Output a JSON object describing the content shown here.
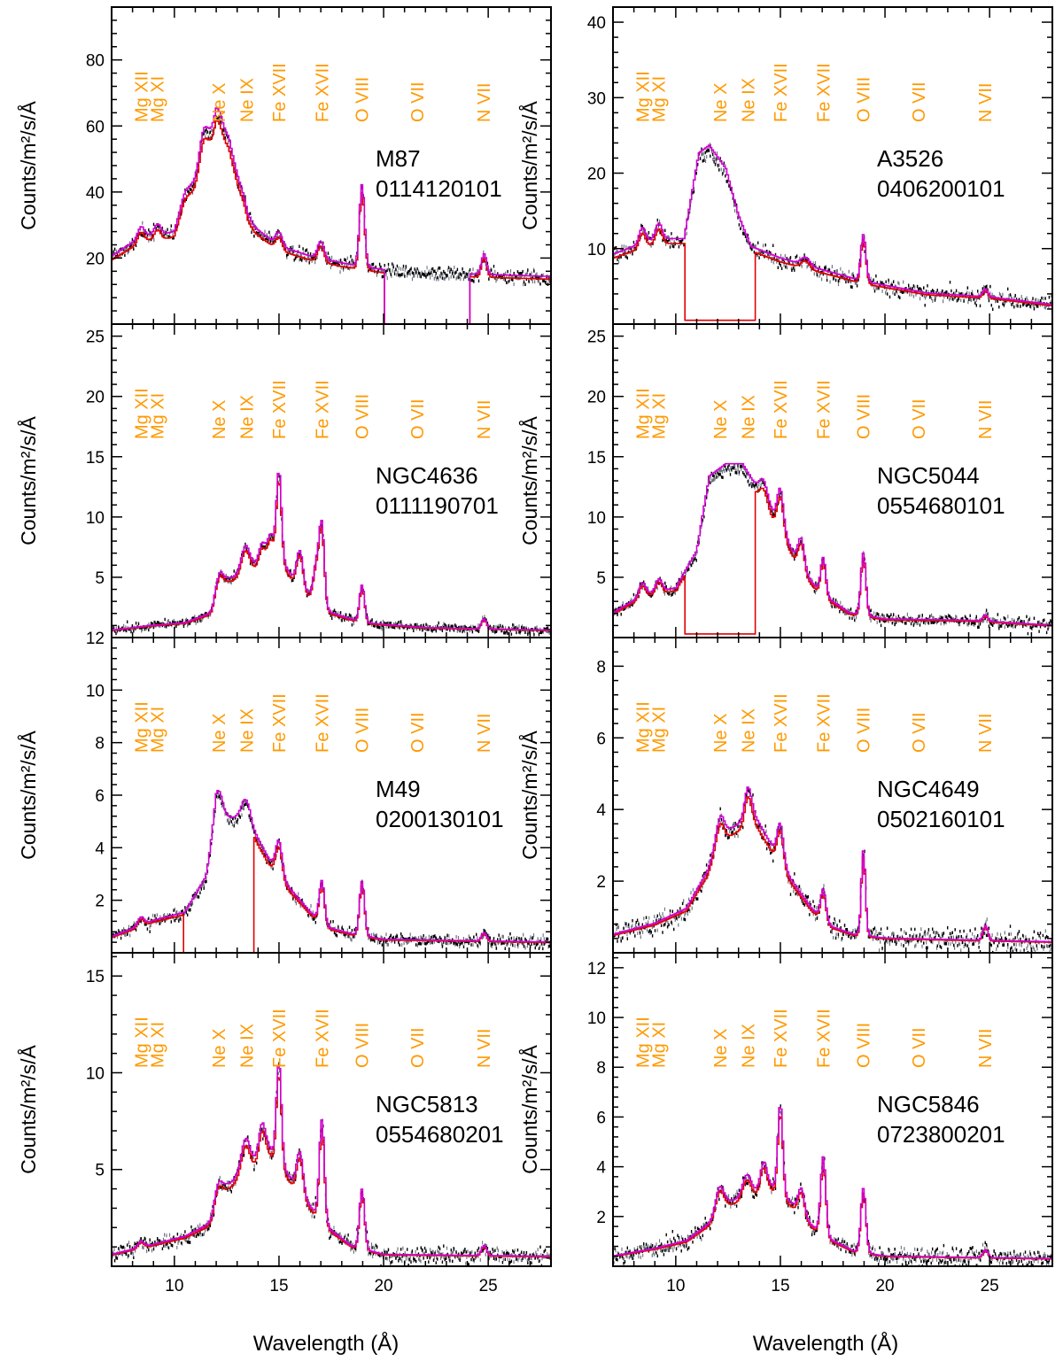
{
  "figure": {
    "xlabel": "Wavelength (Å)",
    "ylabel": "Counts/m²/s/Å",
    "xlim": [
      7,
      28
    ],
    "xticks": [
      10,
      15,
      20,
      25
    ],
    "colors": {
      "data_black": "#000000",
      "data_grey": "#6e7580",
      "model_red": "#e00000",
      "model_magenta": "#d000d0",
      "line_labels": "#ff9900"
    }
  },
  "line_labels": [
    {
      "text": "Mg XII",
      "wavelength": 8.42
    },
    {
      "text": "Mg XI",
      "wavelength": 9.17
    },
    {
      "text": "Ne X",
      "wavelength": 12.13
    },
    {
      "text": "Ne IX",
      "wavelength": 13.45
    },
    {
      "text": "Fe XVII",
      "wavelength": 15.01
    },
    {
      "text": "Fe XVII",
      "wavelength": 17.05
    },
    {
      "text": "O VIII",
      "wavelength": 18.97
    },
    {
      "text": "O VII",
      "wavelength": 21.6
    },
    {
      "text": "N VII",
      "wavelength": 24.78
    }
  ],
  "chart_data": [
    {
      "type": "line",
      "object": "M87",
      "obsid": "0114120101",
      "ylim": [
        0,
        96
      ],
      "yticks": [
        20,
        40,
        60,
        80
      ],
      "continuum": [
        [
          7,
          20
        ],
        [
          8.5,
          26
        ],
        [
          10,
          27
        ],
        [
          11,
          42
        ],
        [
          12,
          60
        ],
        [
          12.6,
          55
        ],
        [
          13.5,
          30
        ],
        [
          15,
          23
        ],
        [
          16.5,
          20
        ],
        [
          18,
          18
        ],
        [
          20,
          16
        ],
        [
          23,
          15
        ],
        [
          28,
          14
        ]
      ],
      "peaks": [
        [
          8.4,
          3,
          0.15
        ],
        [
          9.2,
          3,
          0.15
        ],
        [
          10.5,
          4,
          0.25
        ],
        [
          11.4,
          8,
          0.2
        ],
        [
          12.1,
          4,
          0.18
        ],
        [
          13.4,
          3,
          0.2
        ],
        [
          15.0,
          4,
          0.15
        ],
        [
          17.0,
          5,
          0.15
        ],
        [
          18.97,
          24,
          0.12
        ],
        [
          24.8,
          6,
          0.12
        ]
      ],
      "noise": 1.8,
      "model_gap": [
        20.0,
        24.1
      ],
      "gap_level": 0
    },
    {
      "type": "line",
      "object": "A3526",
      "obsid": "0406200101",
      "ylim": [
        0,
        42
      ],
      "yticks": [
        10,
        20,
        30,
        40
      ],
      "continuum": [
        [
          7,
          9
        ],
        [
          9,
          11
        ],
        [
          10.4,
          11
        ],
        [
          11.1,
          22
        ],
        [
          11.6,
          23
        ],
        [
          12.4,
          20
        ],
        [
          13.0,
          14
        ],
        [
          13.6,
          10
        ],
        [
          15,
          8.5
        ],
        [
          17,
          7
        ],
        [
          19,
          5.5
        ],
        [
          22,
          4
        ],
        [
          25,
          3.5
        ],
        [
          28,
          2.5
        ]
      ],
      "peaks": [
        [
          8.4,
          2,
          0.15
        ],
        [
          9.2,
          2,
          0.15
        ],
        [
          16.2,
          1,
          0.2
        ],
        [
          18.97,
          6,
          0.12
        ],
        [
          24.8,
          1,
          0.12
        ]
      ],
      "noise": 0.9,
      "model_gap": [
        10.4,
        13.8
      ],
      "gap_level": 0.5
    },
    {
      "type": "line",
      "object": "NGC4636",
      "obsid": "0111190701",
      "ylim": [
        0,
        26
      ],
      "yticks": [
        5,
        10,
        15,
        20,
        25
      ],
      "continuum": [
        [
          7,
          0.6
        ],
        [
          9,
          1
        ],
        [
          10.5,
          1.2
        ],
        [
          11.8,
          2
        ],
        [
          12.2,
          4.5
        ],
        [
          13,
          5
        ],
        [
          14,
          6
        ],
        [
          15,
          6.5
        ],
        [
          16,
          4
        ],
        [
          17.5,
          2
        ],
        [
          19,
          1.2
        ],
        [
          22,
          0.8
        ],
        [
          28,
          0.6
        ]
      ],
      "peaks": [
        [
          12.1,
          1,
          0.2
        ],
        [
          13.4,
          2,
          0.2
        ],
        [
          14.2,
          1.5,
          0.15
        ],
        [
          14.6,
          2,
          0.15
        ],
        [
          15.0,
          7,
          0.12
        ],
        [
          16.0,
          3,
          0.15
        ],
        [
          16.8,
          3,
          0.15
        ],
        [
          17.05,
          6,
          0.12
        ],
        [
          18.97,
          3,
          0.12
        ],
        [
          24.8,
          0.8,
          0.12
        ]
      ],
      "noise": 0.3,
      "model_gap": null,
      "gap_level": 0
    },
    {
      "type": "line",
      "object": "NGC5044",
      "obsid": "0554680101",
      "ylim": [
        0,
        26
      ],
      "yticks": [
        5,
        10,
        15,
        20,
        25
      ],
      "continuum": [
        [
          7,
          2
        ],
        [
          8.5,
          3.5
        ],
        [
          10,
          4
        ],
        [
          11,
          7
        ],
        [
          11.6,
          13
        ],
        [
          12.4,
          14
        ],
        [
          13.2,
          14
        ],
        [
          13.9,
          12
        ],
        [
          15,
          9
        ],
        [
          16,
          5.5
        ],
        [
          17,
          3.5
        ],
        [
          18.3,
          2
        ],
        [
          20,
          1.5
        ],
        [
          24,
          1.4
        ],
        [
          28,
          1
        ]
      ],
      "peaks": [
        [
          8.4,
          1,
          0.15
        ],
        [
          9.2,
          1,
          0.15
        ],
        [
          14.2,
          1.5,
          0.2
        ],
        [
          15.0,
          3,
          0.15
        ],
        [
          16.0,
          2.5,
          0.15
        ],
        [
          17.05,
          3,
          0.12
        ],
        [
          18.97,
          5,
          0.12
        ],
        [
          24.8,
          0.5,
          0.12
        ]
      ],
      "noise": 0.4,
      "model_gap": [
        10.4,
        13.8
      ],
      "gap_level": 0.3
    },
    {
      "type": "line",
      "object": "M49",
      "obsid": "0200130101",
      "ylim": [
        0,
        12
      ],
      "yticks": [
        2,
        4,
        6,
        8,
        10,
        12
      ],
      "continuum": [
        [
          7,
          0.6
        ],
        [
          9,
          1.2
        ],
        [
          10.5,
          1.5
        ],
        [
          11.5,
          2.8
        ],
        [
          12,
          5
        ],
        [
          13,
          5
        ],
        [
          13.6,
          4.8
        ],
        [
          14.5,
          3.5
        ],
        [
          15.5,
          2.4
        ],
        [
          16.5,
          1.5
        ],
        [
          17.5,
          0.9
        ],
        [
          18.5,
          0.7
        ],
        [
          20,
          0.5
        ],
        [
          28,
          0.4
        ]
      ],
      "peaks": [
        [
          8.4,
          0.3,
          0.15
        ],
        [
          12.1,
          1,
          0.2
        ],
        [
          13.4,
          0.8,
          0.2
        ],
        [
          15.0,
          1.2,
          0.15
        ],
        [
          17.05,
          1.5,
          0.12
        ],
        [
          18.97,
          2,
          0.12
        ],
        [
          24.8,
          0.3,
          0.12
        ]
      ],
      "noise": 0.2,
      "model_gap": [
        10.4,
        13.8
      ],
      "gap_level": 0
    },
    {
      "type": "line",
      "object": "NGC4649",
      "obsid": "0502160101",
      "ylim": [
        0,
        8.8
      ],
      "yticks": [
        2,
        4,
        6,
        8
      ],
      "continuum": [
        [
          7,
          0.5
        ],
        [
          9,
          0.8
        ],
        [
          10.5,
          1.2
        ],
        [
          11.5,
          2.2
        ],
        [
          12.2,
          3.2
        ],
        [
          13,
          3.5
        ],
        [
          13.7,
          3.8
        ],
        [
          14.5,
          3
        ],
        [
          15.5,
          2
        ],
        [
          16.5,
          1.2
        ],
        [
          17.5,
          0.7
        ],
        [
          18.5,
          0.5
        ],
        [
          20,
          0.4
        ],
        [
          28,
          0.3
        ]
      ],
      "peaks": [
        [
          12.1,
          0.6,
          0.2
        ],
        [
          13.45,
          0.8,
          0.15
        ],
        [
          15.0,
          1,
          0.15
        ],
        [
          17.05,
          0.8,
          0.12
        ],
        [
          18.97,
          2.3,
          0.1
        ],
        [
          24.8,
          0.4,
          0.12
        ]
      ],
      "noise": 0.25,
      "model_gap": null,
      "gap_level": 0
    },
    {
      "type": "line",
      "object": "NGC5813",
      "obsid": "0554680201",
      "ylim": [
        0,
        16.2
      ],
      "yticks": [
        5,
        10,
        15
      ],
      "continuum": [
        [
          7,
          0.6
        ],
        [
          9,
          1.1
        ],
        [
          10.5,
          1.5
        ],
        [
          11.8,
          2.2
        ],
        [
          12.5,
          4
        ],
        [
          13.5,
          5
        ],
        [
          14.5,
          6
        ],
        [
          15.5,
          4.5
        ],
        [
          16.5,
          3
        ],
        [
          17.5,
          1.8
        ],
        [
          18.5,
          1
        ],
        [
          20,
          0.6
        ],
        [
          28,
          0.5
        ]
      ],
      "peaks": [
        [
          8.4,
          0.3,
          0.15
        ],
        [
          12.1,
          1.2,
          0.2
        ],
        [
          13.4,
          1.5,
          0.2
        ],
        [
          14.2,
          1.5,
          0.15
        ],
        [
          15.0,
          5,
          0.12
        ],
        [
          16.0,
          2,
          0.15
        ],
        [
          17.05,
          5,
          0.12
        ],
        [
          18.97,
          3,
          0.12
        ],
        [
          24.8,
          0.5,
          0.12
        ]
      ],
      "noise": 0.35,
      "model_gap": null,
      "gap_level": 0
    },
    {
      "type": "line",
      "object": "NGC5846",
      "obsid": "0723800201",
      "ylim": [
        0,
        12.6
      ],
      "yticks": [
        2,
        4,
        6,
        8,
        10,
        12
      ],
      "continuum": [
        [
          7,
          0.4
        ],
        [
          9,
          0.7
        ],
        [
          10.5,
          1
        ],
        [
          11.8,
          1.8
        ],
        [
          12.5,
          2.5
        ],
        [
          13.5,
          2.8
        ],
        [
          14.5,
          3.2
        ],
        [
          15.5,
          2.5
        ],
        [
          16.5,
          1.6
        ],
        [
          17.5,
          1
        ],
        [
          18.5,
          0.6
        ],
        [
          20,
          0.4
        ],
        [
          28,
          0.3
        ]
      ],
      "peaks": [
        [
          12.1,
          1,
          0.2
        ],
        [
          13.4,
          0.8,
          0.2
        ],
        [
          14.2,
          1,
          0.15
        ],
        [
          15.0,
          3.5,
          0.12
        ],
        [
          16.0,
          1,
          0.15
        ],
        [
          17.05,
          3,
          0.12
        ],
        [
          18.97,
          2.5,
          0.12
        ],
        [
          24.8,
          0.3,
          0.12
        ]
      ],
      "noise": 0.3,
      "model_gap": null,
      "gap_level": 0
    }
  ]
}
